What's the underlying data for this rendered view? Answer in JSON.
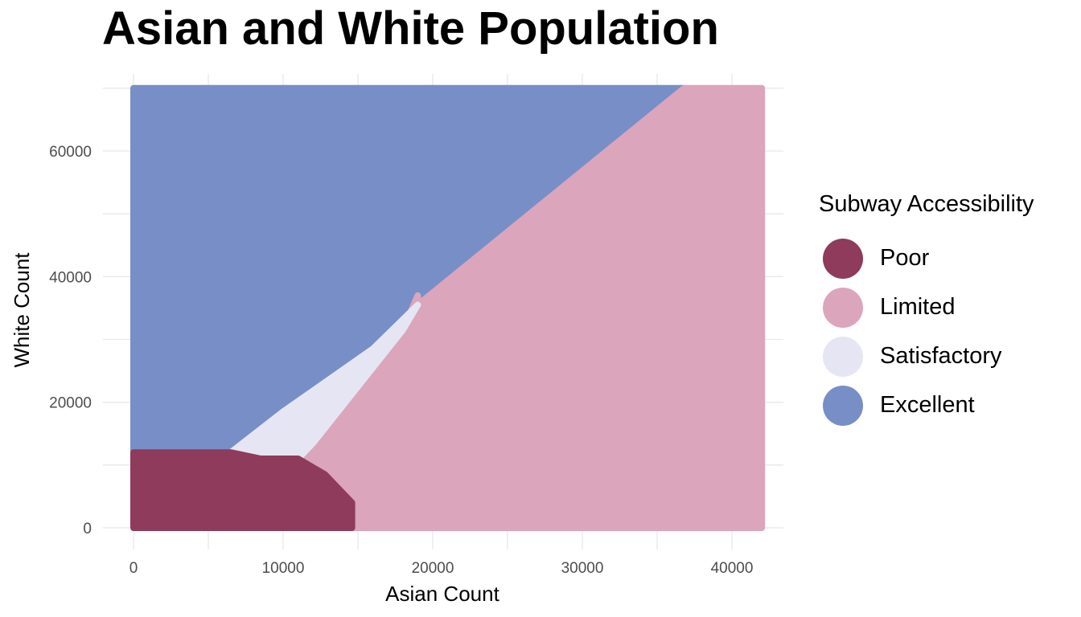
{
  "chart_data": {
    "type": "heatmap",
    "title": "Asian and White Population",
    "xlabel": "Asian Count",
    "ylabel": "White Count",
    "x_ticks": [
      0,
      10000,
      20000,
      30000,
      40000
    ],
    "y_ticks": [
      0,
      20000,
      40000,
      60000
    ],
    "x_tick_labels": [
      "0",
      "10000",
      "20000",
      "30000",
      "40000"
    ],
    "y_tick_labels": [
      "0",
      "20000",
      "40000",
      "60000"
    ],
    "xlim": [
      0,
      42000
    ],
    "ylim": [
      0,
      70000
    ],
    "grid": true,
    "legend_position": "right",
    "legend_title": "Subway Accessibility",
    "classes": [
      {
        "name": "Poor",
        "color": "#8e3b5c"
      },
      {
        "name": "Limited",
        "color": "#dba5bc"
      },
      {
        "name": "Satisfactory",
        "color": "#e6e5f3"
      },
      {
        "name": "Excellent",
        "color": "#788ec6"
      }
    ],
    "regions": [
      {
        "class": "Excellent",
        "polygon": [
          [
            0,
            70000
          ],
          [
            0,
            12000
          ],
          [
            6500,
            12000
          ],
          [
            10000,
            18500
          ],
          [
            16000,
            28500
          ],
          [
            19000,
            35500
          ],
          [
            36800,
            70000
          ]
        ]
      },
      {
        "class": "Limited",
        "polygon": [
          [
            36800,
            70000
          ],
          [
            19000,
            35500
          ],
          [
            19000,
            37000
          ],
          [
            18000,
            31500
          ],
          [
            12000,
            13500
          ],
          [
            11000,
            11000
          ],
          [
            12800,
            8500
          ],
          [
            14600,
            4000
          ],
          [
            14600,
            0
          ],
          [
            42000,
            0
          ],
          [
            42000,
            70000
          ]
        ]
      },
      {
        "class": "Satisfactory",
        "polygon": [
          [
            6500,
            12000
          ],
          [
            10000,
            18500
          ],
          [
            16000,
            28500
          ],
          [
            19000,
            35500
          ],
          [
            18000,
            31500
          ],
          [
            12000,
            13500
          ],
          [
            11000,
            11000
          ],
          [
            8500,
            11000
          ]
        ]
      },
      {
        "class": "Poor",
        "polygon": [
          [
            0,
            0
          ],
          [
            0,
            12000
          ],
          [
            6500,
            12000
          ],
          [
            8500,
            11000
          ],
          [
            11000,
            11000
          ],
          [
            12800,
            8500
          ],
          [
            14600,
            4000
          ],
          [
            14600,
            0
          ]
        ]
      }
    ]
  }
}
